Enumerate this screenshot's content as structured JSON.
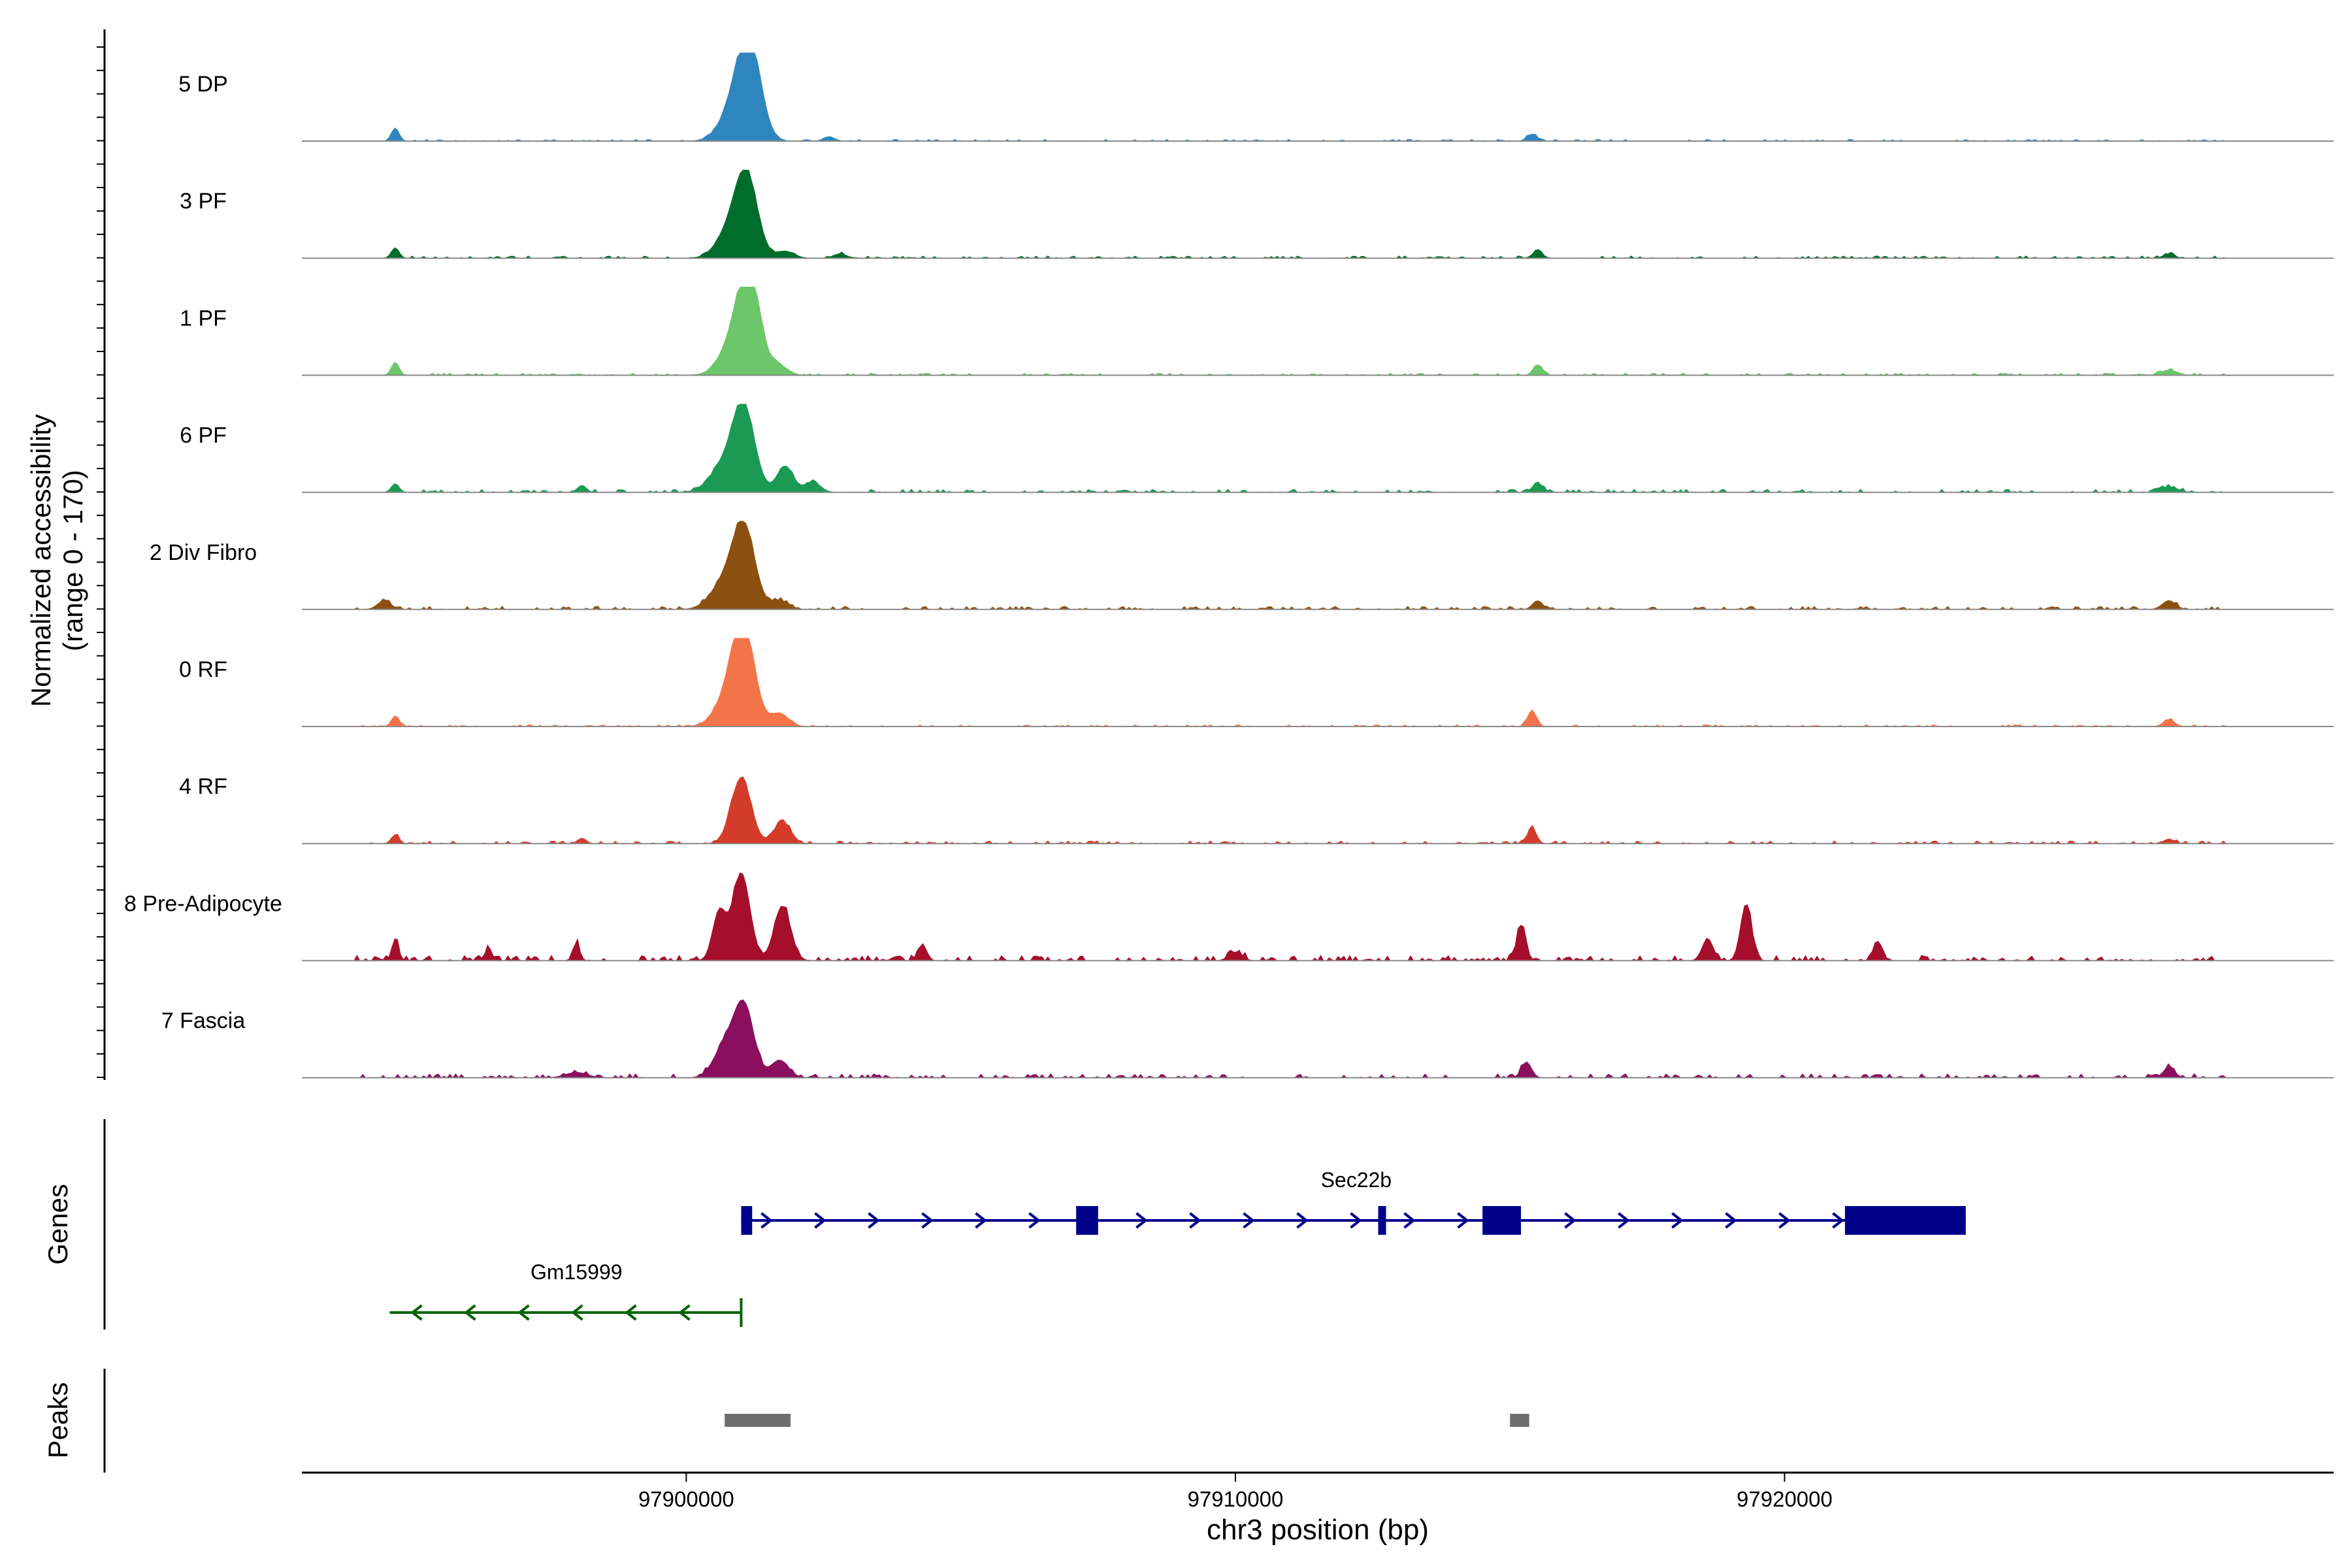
{
  "chart_data": {
    "type": "area",
    "title": "",
    "region": {
      "chromosome": "chr3",
      "start": 97893000,
      "end": 97930000
    },
    "coverage_panel": {
      "ylabel": "Normalized accessibility",
      "ylabel_range": "(range 0 - 170)",
      "ylim": [
        0,
        170
      ],
      "tracks": [
        {
          "name": "5 DP",
          "color": "#2F86BF",
          "peaks": [
            [
              97894700,
              0.15,
              70
            ],
            [
              97901150,
              1.0,
              210
            ],
            [
              97900900,
              0.38,
              260
            ],
            [
              97915400,
              0.08,
              90
            ],
            [
              97902600,
              0.05,
              100
            ]
          ],
          "noise": 0.02,
          "noise_span": [
            97895000,
            97928000
          ]
        },
        {
          "name": "3 PF",
          "color": "#006D2C",
          "peaks": [
            [
              97894700,
              0.12,
              70
            ],
            [
              97901100,
              0.88,
              200
            ],
            [
              97900800,
              0.3,
              240
            ],
            [
              97901800,
              0.08,
              160
            ],
            [
              97902800,
              0.05,
              120
            ],
            [
              97915500,
              0.08,
              90
            ],
            [
              97927000,
              0.05,
              100
            ]
          ],
          "noise": 0.025,
          "noise_span": [
            97895000,
            97928000
          ]
        },
        {
          "name": "1 PF",
          "color": "#6CC66A",
          "peaks": [
            [
              97894700,
              0.15,
              70
            ],
            [
              97901150,
              1.0,
              200
            ],
            [
              97900900,
              0.4,
              260
            ],
            [
              97901700,
              0.1,
              160
            ],
            [
              97915500,
              0.12,
              80
            ],
            [
              97927000,
              0.06,
              150
            ]
          ],
          "noise": 0.025,
          "noise_span": [
            97895000,
            97928000
          ]
        },
        {
          "name": "6 PF",
          "color": "#1B9A54",
          "peaks": [
            [
              97894700,
              0.1,
              70
            ],
            [
              97901050,
              0.9,
              200
            ],
            [
              97900700,
              0.3,
              260
            ],
            [
              97901800,
              0.3,
              150
            ],
            [
              97902300,
              0.12,
              140
            ],
            [
              97898100,
              0.08,
              80
            ],
            [
              97915500,
              0.12,
              80
            ],
            [
              97927000,
              0.06,
              160
            ]
          ],
          "noise": 0.035,
          "noise_span": [
            97895000,
            97928000
          ]
        },
        {
          "name": "2 Div Fibro",
          "color": "#8C5110",
          "peaks": [
            [
              97894500,
              0.1,
              120
            ],
            [
              97901050,
              0.9,
              200
            ],
            [
              97900700,
              0.3,
              250
            ],
            [
              97901700,
              0.1,
              160
            ],
            [
              97915500,
              0.1,
              90
            ],
            [
              97927000,
              0.1,
              120
            ]
          ],
          "noise": 0.035,
          "noise_span": [
            97894000,
            97928000
          ]
        },
        {
          "name": "0 RF",
          "color": "#F4744A",
          "peaks": [
            [
              97894700,
              0.12,
              70
            ],
            [
              97901050,
              1.0,
              200
            ],
            [
              97900800,
              0.35,
              250
            ],
            [
              97901700,
              0.15,
              160
            ],
            [
              97915400,
              0.18,
              80
            ],
            [
              97927000,
              0.08,
              100
            ]
          ],
          "noise": 0.02,
          "noise_span": [
            97894000,
            97928000
          ]
        },
        {
          "name": "4 RF",
          "color": "#D33C2B",
          "peaks": [
            [
              97894700,
              0.1,
              70
            ],
            [
              97901000,
              0.75,
              180
            ],
            [
              97901750,
              0.25,
              150
            ],
            [
              97898100,
              0.06,
              80
            ],
            [
              97915400,
              0.18,
              80
            ],
            [
              97927000,
              0.05,
              100
            ]
          ],
          "noise": 0.03,
          "noise_span": [
            97894000,
            97928000
          ]
        },
        {
          "name": "8 Pre-Adipocyte",
          "color": "#A50F2C",
          "peaks": [
            [
              97894700,
              0.25,
              60
            ],
            [
              97896400,
              0.15,
              60
            ],
            [
              97898000,
              0.2,
              60
            ],
            [
              97900600,
              0.55,
              120
            ],
            [
              97901000,
              1.0,
              160
            ],
            [
              97901750,
              0.62,
              150
            ],
            [
              97904300,
              0.18,
              80
            ],
            [
              97915200,
              0.4,
              80
            ],
            [
              97919300,
              0.65,
              100
            ],
            [
              97918600,
              0.25,
              100
            ],
            [
              97921700,
              0.22,
              80
            ],
            [
              97910000,
              0.1,
              120
            ]
          ],
          "noise": 0.06,
          "noise_span": [
            97894000,
            97928000
          ]
        },
        {
          "name": "7 Fascia",
          "color": "#8B0F5E",
          "peaks": [
            [
              97901050,
              0.8,
              180
            ],
            [
              97900700,
              0.35,
              200
            ],
            [
              97901700,
              0.2,
              160
            ],
            [
              97898000,
              0.06,
              200
            ],
            [
              97915300,
              0.18,
              90
            ],
            [
              97927000,
              0.12,
              100
            ]
          ],
          "noise": 0.045,
          "noise_span": [
            97894000,
            97928000
          ]
        }
      ]
    },
    "genes_panel": {
      "label": "Genes",
      "genes": [
        {
          "name": "Sec22b",
          "strand": "+",
          "color": "#00008B",
          "start": 97901000,
          "end": 97923300,
          "exons": [
            [
              97901000,
              97901200
            ],
            [
              97907100,
              97907500
            ],
            [
              97912600,
              97912700
            ],
            [
              97914500,
              97915200
            ],
            [
              97921100,
              97923300
            ]
          ]
        },
        {
          "name": "Gm15999",
          "strand": "-",
          "color": "#006400",
          "start": 97894600,
          "end": 97901000,
          "exons": []
        }
      ]
    },
    "peaks_panel": {
      "label": "Peaks",
      "color": "#6E6E6E",
      "peaks": [
        [
          97900700,
          97901900
        ],
        [
          97915000,
          97915350
        ]
      ]
    },
    "x_axis": {
      "label": "chr3 position (bp)",
      "ticks": [
        97900000,
        97910000,
        97920000
      ],
      "tick_labels": [
        "97900000",
        "97910000",
        "97920000"
      ]
    }
  }
}
